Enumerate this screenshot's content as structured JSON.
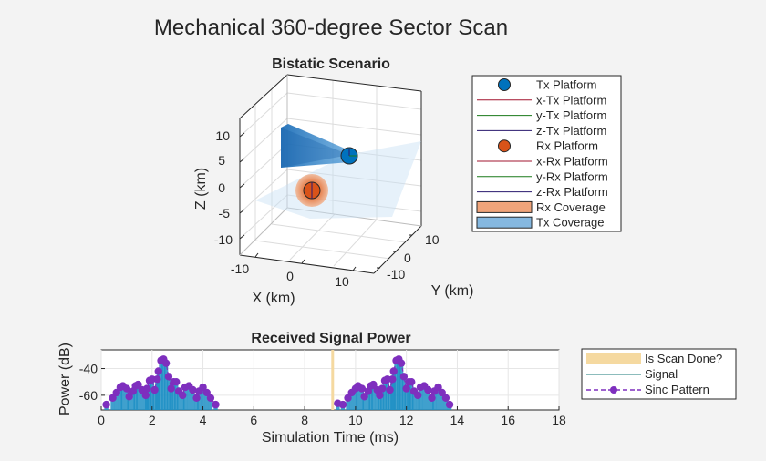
{
  "figure": {
    "title": "Mechanical 360-degree Sector Scan"
  },
  "scenario": {
    "title": "Bistatic Scenario",
    "xlabel": "X (km)",
    "ylabel": "Y (km)",
    "zlabel": "Z (km)",
    "x_ticks": [
      "-10",
      "0",
      "10"
    ],
    "y_ticks": [
      "10",
      "0",
      "-10"
    ],
    "z_ticks": [
      "10",
      "5",
      "0",
      "-5",
      "-10"
    ],
    "legend": [
      {
        "label": "Tx Platform",
        "kind": "marker",
        "color": "#0072bd"
      },
      {
        "label": "x-Tx Platform",
        "kind": "line",
        "color": "#a2142f"
      },
      {
        "label": "y-Tx Platform",
        "kind": "line",
        "color": "#1a7a1a"
      },
      {
        "label": "z-Tx Platform",
        "kind": "line",
        "color": "#2a1a6e"
      },
      {
        "label": "Rx Platform",
        "kind": "marker",
        "color": "#d95319"
      },
      {
        "label": "x-Rx Platform",
        "kind": "line",
        "color": "#a2142f"
      },
      {
        "label": "y-Rx Platform",
        "kind": "line",
        "color": "#1a7a1a"
      },
      {
        "label": "z-Rx Platform",
        "kind": "line",
        "color": "#2a1a6e"
      },
      {
        "label": "Rx Coverage",
        "kind": "patch",
        "color": "#f0a47a"
      },
      {
        "label": "Tx Coverage",
        "kind": "patch",
        "color": "#85b8e0"
      }
    ]
  },
  "chart_data": {
    "type": "bar",
    "title": "Received Signal Power",
    "xlabel": "Simulation Time (ms)",
    "ylabel": "Power (dB)",
    "xlim": [
      0,
      18
    ],
    "ylim": [
      -71,
      -26
    ],
    "x_ticks": [
      "0",
      "2",
      "4",
      "6",
      "8",
      "10",
      "12",
      "14",
      "16",
      "18"
    ],
    "y_ticks": [
      "-40",
      "-60"
    ],
    "legend": [
      "Is Scan Done?",
      "Signal",
      "Sinc Pattern"
    ],
    "colors": {
      "scan_done": "#f5d9a0",
      "signal": "#1f8fc4",
      "sinc": "#7e2fbe"
    },
    "scan_done_at": [
      9.1
    ],
    "sinc_points": [
      {
        "x": 0.2,
        "y": -67
      },
      {
        "x": 0.45,
        "y": -62
      },
      {
        "x": 0.6,
        "y": -58
      },
      {
        "x": 0.75,
        "y": -54
      },
      {
        "x": 0.85,
        "y": -53
      },
      {
        "x": 1.0,
        "y": -55
      },
      {
        "x": 1.1,
        "y": -61
      },
      {
        "x": 1.25,
        "y": -57
      },
      {
        "x": 1.35,
        "y": -53
      },
      {
        "x": 1.45,
        "y": -52
      },
      {
        "x": 1.6,
        "y": -56
      },
      {
        "x": 1.75,
        "y": -60
      },
      {
        "x": 1.8,
        "y": -55
      },
      {
        "x": 1.9,
        "y": -49
      },
      {
        "x": 2.0,
        "y": -48
      },
      {
        "x": 2.1,
        "y": -56
      },
      {
        "x": 2.2,
        "y": -48
      },
      {
        "x": 2.25,
        "y": -42
      },
      {
        "x": 2.35,
        "y": -34
      },
      {
        "x": 2.45,
        "y": -33
      },
      {
        "x": 2.55,
        "y": -36
      },
      {
        "x": 2.65,
        "y": -46
      },
      {
        "x": 2.75,
        "y": -55
      },
      {
        "x": 2.85,
        "y": -50
      },
      {
        "x": 2.95,
        "y": -50
      },
      {
        "x": 3.05,
        "y": -57
      },
      {
        "x": 3.2,
        "y": -60
      },
      {
        "x": 3.3,
        "y": -54
      },
      {
        "x": 3.45,
        "y": -53
      },
      {
        "x": 3.6,
        "y": -56
      },
      {
        "x": 3.75,
        "y": -62
      },
      {
        "x": 3.85,
        "y": -57
      },
      {
        "x": 4.0,
        "y": -54
      },
      {
        "x": 4.15,
        "y": -58
      },
      {
        "x": 4.3,
        "y": -62
      },
      {
        "x": 4.5,
        "y": -67
      },
      {
        "x": 9.3,
        "y": -66
      },
      {
        "x": 9.5,
        "y": -67
      },
      {
        "x": 9.7,
        "y": -62
      },
      {
        "x": 9.85,
        "y": -58
      },
      {
        "x": 10.0,
        "y": -55
      },
      {
        "x": 10.1,
        "y": -53
      },
      {
        "x": 10.25,
        "y": -55
      },
      {
        "x": 10.35,
        "y": -61
      },
      {
        "x": 10.5,
        "y": -57
      },
      {
        "x": 10.6,
        "y": -53
      },
      {
        "x": 10.7,
        "y": -52
      },
      {
        "x": 10.85,
        "y": -56
      },
      {
        "x": 10.95,
        "y": -60
      },
      {
        "x": 11.05,
        "y": -55
      },
      {
        "x": 11.15,
        "y": -49
      },
      {
        "x": 11.25,
        "y": -48
      },
      {
        "x": 11.35,
        "y": -56
      },
      {
        "x": 11.45,
        "y": -48
      },
      {
        "x": 11.5,
        "y": -42
      },
      {
        "x": 11.6,
        "y": -34
      },
      {
        "x": 11.7,
        "y": -33
      },
      {
        "x": 11.8,
        "y": -36
      },
      {
        "x": 11.9,
        "y": -46
      },
      {
        "x": 12.0,
        "y": -55
      },
      {
        "x": 12.1,
        "y": -50
      },
      {
        "x": 12.2,
        "y": -50
      },
      {
        "x": 12.3,
        "y": -57
      },
      {
        "x": 12.45,
        "y": -60
      },
      {
        "x": 12.55,
        "y": -54
      },
      {
        "x": 12.7,
        "y": -53
      },
      {
        "x": 12.85,
        "y": -56
      },
      {
        "x": 13.0,
        "y": -62
      },
      {
        "x": 13.1,
        "y": -57
      },
      {
        "x": 13.25,
        "y": -54
      },
      {
        "x": 13.4,
        "y": -58
      },
      {
        "x": 13.55,
        "y": -62
      },
      {
        "x": 13.7,
        "y": -67
      }
    ]
  }
}
